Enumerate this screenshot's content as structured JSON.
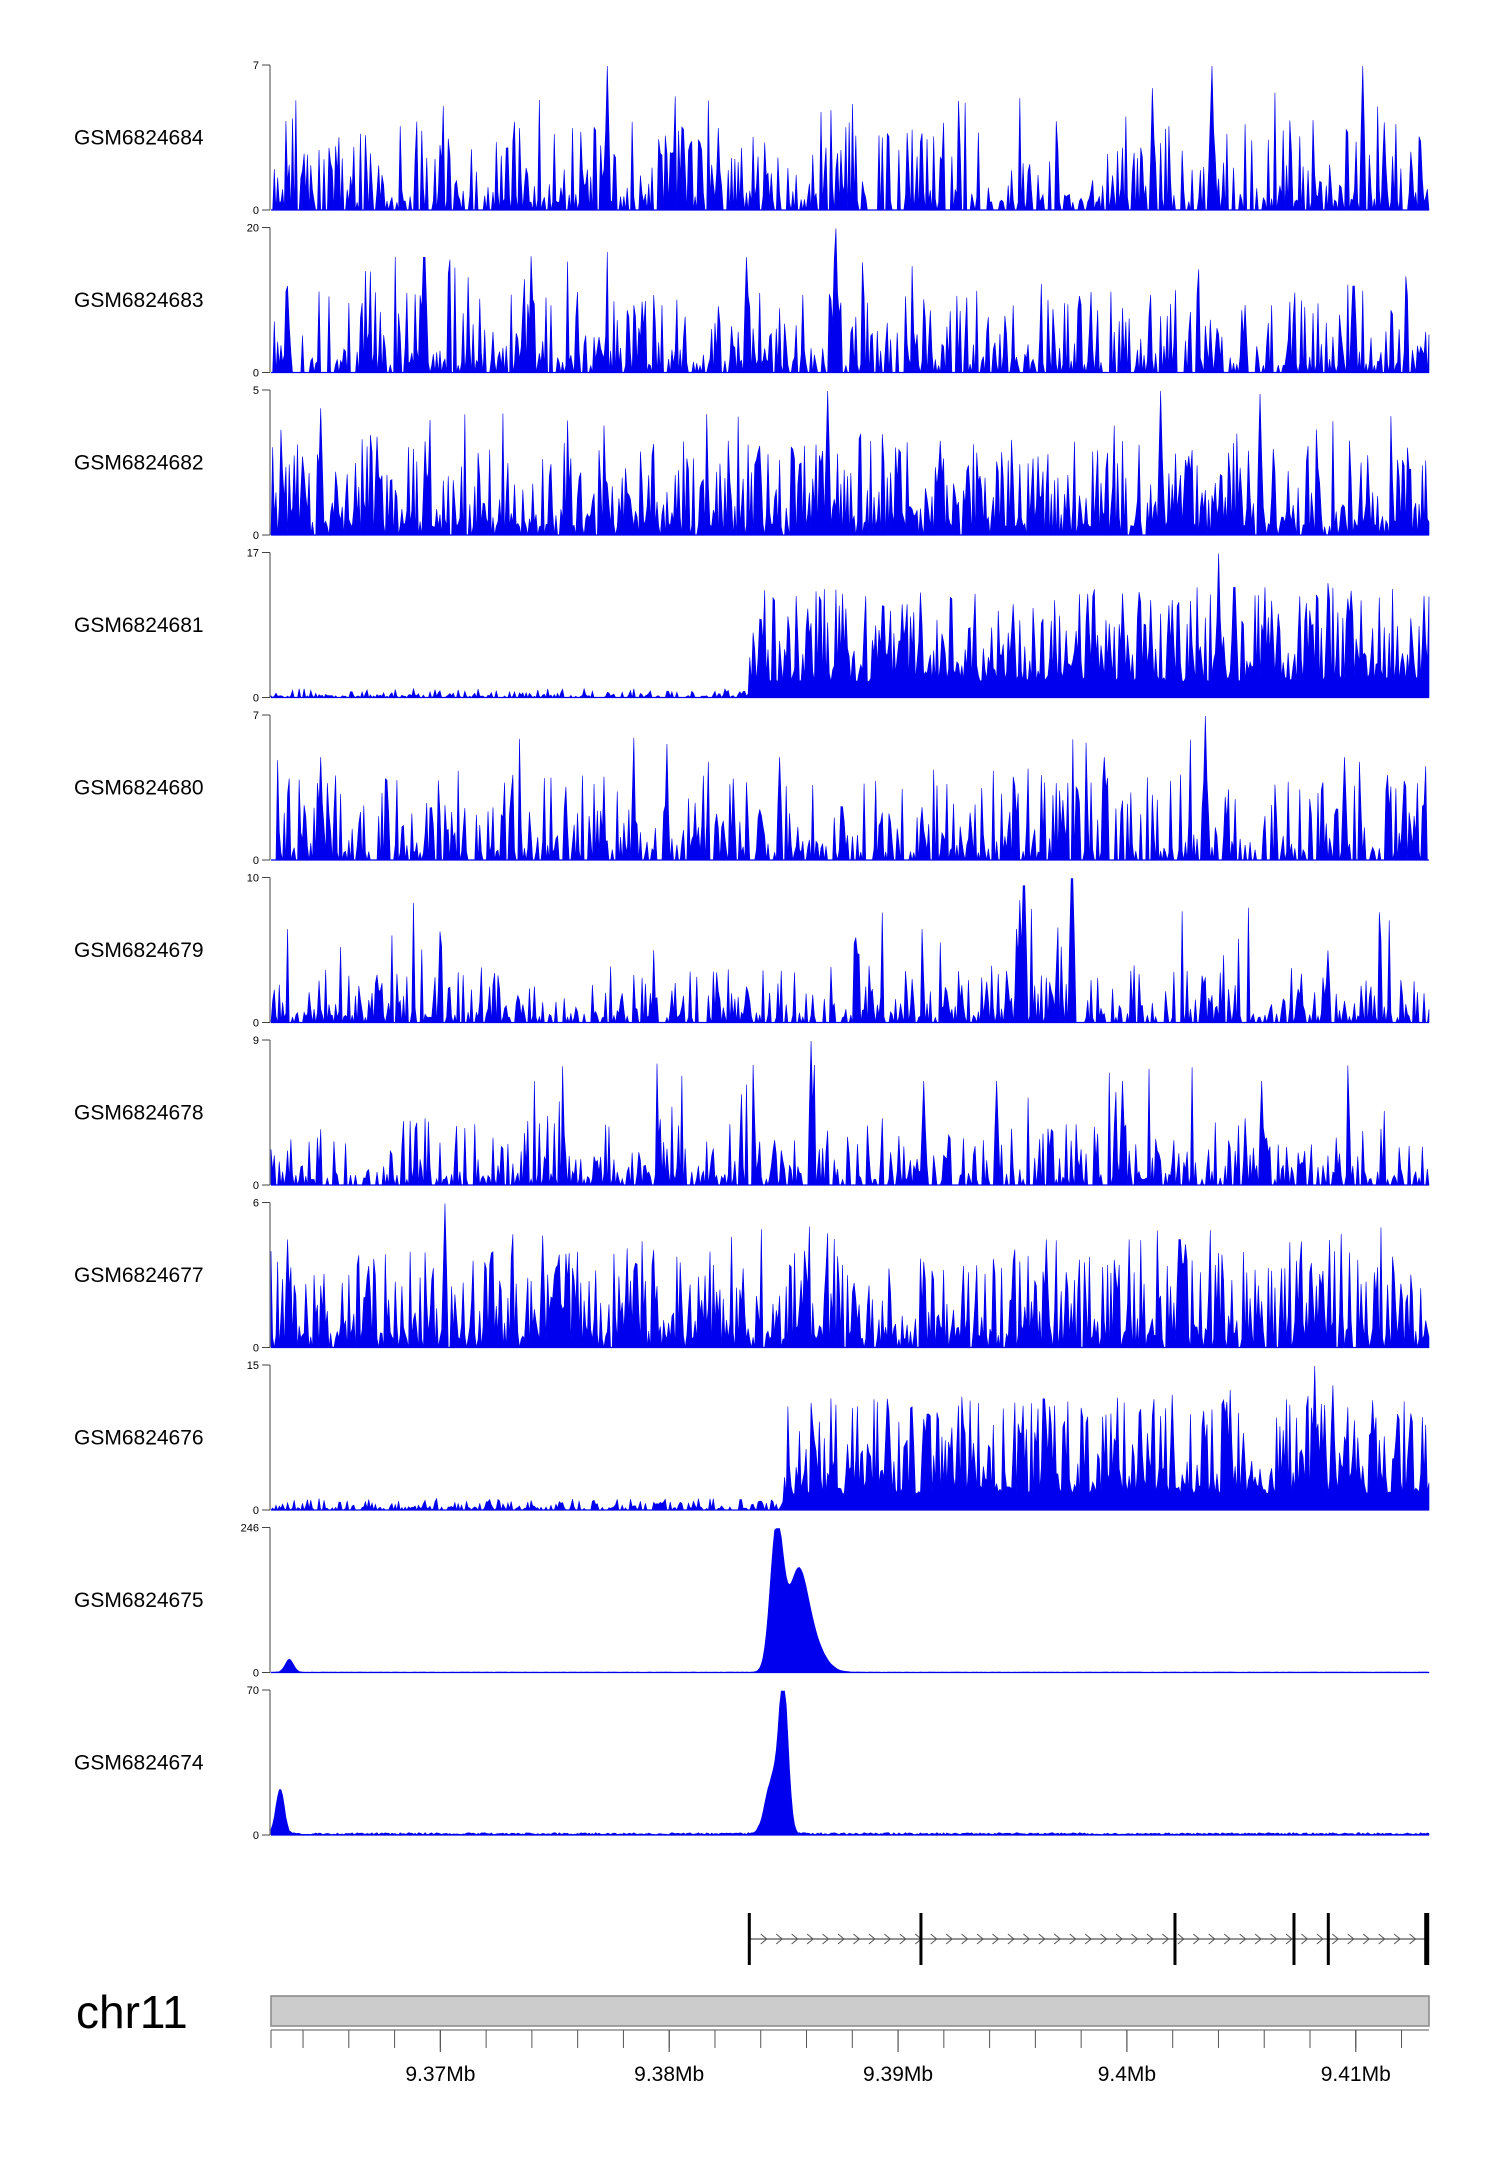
{
  "chart_data": {
    "type": "area",
    "chromosome": "chr11",
    "x_unit": "Mb",
    "xlim": [
      9.3626,
      9.4132
    ],
    "x_ticks": [
      {
        "value": 9.37,
        "label": "9.37Mb"
      },
      {
        "value": 9.38,
        "label": "9.38Mb"
      },
      {
        "value": 9.39,
        "label": "9.39Mb"
      },
      {
        "value": 9.4,
        "label": "9.4Mb"
      },
      {
        "value": 9.41,
        "label": "9.41Mb"
      }
    ],
    "fill_color": "#0000ee",
    "tracks": [
      {
        "name": "GSM6824684",
        "ymax": 7,
        "ymax_label": "7",
        "ymin_label": "0",
        "profile": "sparse",
        "baseline": 2.5,
        "peaks": [
          [
            9.3773,
            7.0
          ],
          [
            9.4037,
            7.0
          ],
          [
            9.4103,
            7.0
          ]
        ]
      },
      {
        "name": "GSM6824683",
        "ymax": 20,
        "ymax_label": "20",
        "ymin_label": "0",
        "profile": "sparse",
        "baseline": 6.5,
        "peaks": [
          [
            9.3633,
            12.0
          ],
          [
            9.3693,
            16.0
          ],
          [
            9.3834,
            16.0
          ],
          [
            9.3873,
            20.0
          ],
          [
            9.4099,
            12.0
          ]
        ]
      },
      {
        "name": "GSM6824682",
        "ymax": 5,
        "ymax_label": "5",
        "ymin_label": "0",
        "profile": "dense",
        "baseline": 1.9,
        "peaks": [
          [
            9.3648,
            4.4
          ],
          [
            9.3869,
            5.0
          ],
          [
            9.4015,
            5.0
          ],
          [
            9.4058,
            4.9
          ]
        ]
      },
      {
        "name": "GSM6824681",
        "ymax": 17,
        "ymax_label": "17",
        "ymin_label": "0",
        "profile": "shift",
        "shift": 9.3835,
        "low": 0.6,
        "high": 7.5,
        "peaks": [
          [
            9.3877,
            10.5
          ],
          [
            9.3902,
            11.0
          ],
          [
            9.391,
            12.0
          ],
          [
            9.402,
            11.5
          ],
          [
            9.404,
            17.0
          ],
          [
            9.4047,
            13.0
          ],
          [
            9.4088,
            13.5
          ],
          [
            9.413,
            12.0
          ]
        ]
      },
      {
        "name": "GSM6824680",
        "ymax": 7,
        "ymax_label": "7",
        "ymin_label": "0",
        "profile": "sparse",
        "baseline": 2.4,
        "peaks": [
          [
            9.3648,
            5.0
          ],
          [
            9.3848,
            5.0
          ],
          [
            9.399,
            5.0
          ],
          [
            9.4034,
            7.0
          ],
          [
            9.4095,
            5.0
          ]
        ]
      },
      {
        "name": "GSM6824679",
        "ymax": 10,
        "ymax_label": "10",
        "ymin_label": "0",
        "profile": "sparse",
        "baseline": 2.3,
        "peaks": [
          [
            9.3953,
            8.5
          ],
          [
            9.3976,
            10.0
          ],
          [
            9.3955,
            9.5
          ],
          [
            9.3882,
            4.8
          ],
          [
            9.4088,
            5.0
          ]
        ]
      },
      {
        "name": "GSM6824678",
        "ymax": 9,
        "ymax_label": "9",
        "ymin_label": "0",
        "profile": "sparse",
        "baseline": 2.3,
        "peaks": [
          [
            9.3862,
            9.0
          ],
          [
            9.3911,
            6.5
          ],
          [
            9.3943,
            6.5
          ],
          [
            9.3998,
            6.5
          ],
          [
            9.4059,
            6.5
          ]
        ]
      },
      {
        "name": "GSM6824677",
        "ymax": 6,
        "ymax_label": "6",
        "ymin_label": "0",
        "profile": "dense",
        "baseline": 2.3,
        "peaks": [
          [
            9.3702,
            6.0
          ],
          [
            9.3633,
            4.5
          ],
          [
            9.3745,
            4.5
          ],
          [
            9.3965,
            4.5
          ],
          [
            9.4023,
            4.5
          ]
        ]
      },
      {
        "name": "GSM6824676",
        "ymax": 15,
        "ymax_label": "15",
        "ymin_label": "0",
        "profile": "shift",
        "shift": 9.385,
        "low": 0.7,
        "high": 6.8,
        "peaks": [
          [
            9.3863,
            9.0
          ],
          [
            9.3913,
            10.0
          ],
          [
            9.4006,
            10.5
          ],
          [
            9.402,
            12.0
          ],
          [
            9.4045,
            12.5
          ],
          [
            9.4082,
            15.0
          ],
          [
            9.409,
            13.0
          ],
          [
            9.4118,
            10.0
          ]
        ]
      },
      {
        "name": "GSM6824675",
        "ymax": 246,
        "ymax_label": "246",
        "ymin_label": "0",
        "profile": "peak",
        "baseline": 0.8,
        "noise": 0.8,
        "peaks": [
          [
            9.3847,
            246,
            0.00028
          ],
          [
            9.3856,
            120,
            0.0004
          ],
          [
            9.386,
            70,
            0.0006
          ],
          [
            9.3634,
            22,
            0.00018
          ]
        ]
      },
      {
        "name": "GSM6824674",
        "ymax": 70,
        "ymax_label": "70",
        "ymin_label": "0",
        "profile": "peak",
        "baseline": 0.6,
        "noise": 1.6,
        "peaks": [
          [
            9.385,
            70,
            0.0002
          ],
          [
            9.3845,
            26,
            0.0003
          ],
          [
            9.363,
            22,
            0.00018
          ]
        ]
      }
    ],
    "gene_model": {
      "strand": "+",
      "start": 9.3835,
      "end": 9.4132,
      "exons": [
        9.3835,
        9.391,
        9.4021,
        9.4073,
        9.4088,
        9.4131
      ]
    }
  }
}
